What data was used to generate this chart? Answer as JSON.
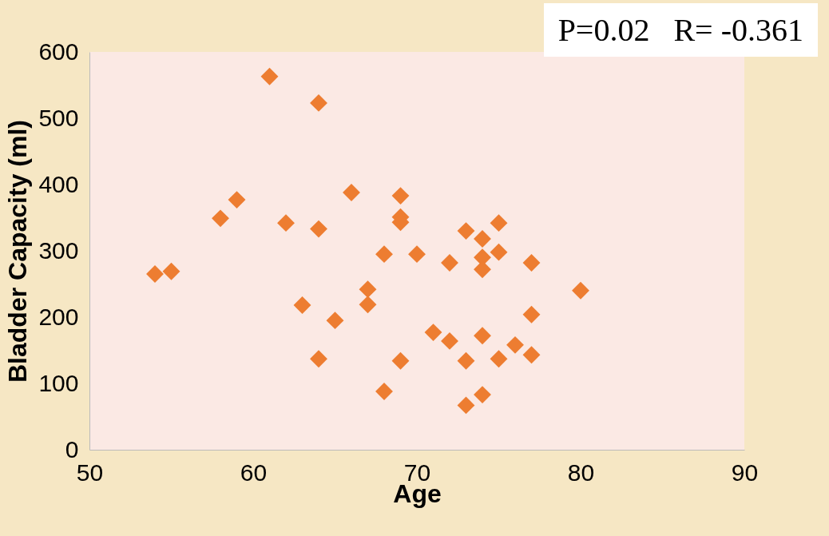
{
  "chart_data": {
    "type": "scatter",
    "xlabel": "Age",
    "ylabel": "Bladder Capacity (ml)",
    "annotations": [
      "P=0.02   R= -0.361"
    ],
    "x": [
      54,
      55,
      58,
      59,
      61,
      62,
      64,
      64,
      63,
      64,
      65,
      66,
      67,
      67,
      68,
      68,
      69,
      69,
      69,
      69,
      70,
      71,
      72,
      72,
      73,
      73,
      73,
      74,
      74,
      74,
      74,
      74,
      75,
      75,
      75,
      76,
      77,
      77,
      77,
      80
    ],
    "series": [
      {
        "color": "#ed7d31",
        "values": [
          265,
          269,
          349,
          377,
          563,
          342,
          523,
          333,
          218,
          137,
          195,
          388,
          242,
          219,
          295,
          88,
          383,
          351,
          343,
          134,
          295,
          177,
          282,
          164,
          330,
          134,
          67,
          318,
          290,
          272,
          172,
          83,
          342,
          298,
          137,
          158,
          282,
          204,
          143,
          240
        ]
      }
    ],
    "xlim": [
      50,
      90
    ],
    "xticks": [
      50,
      60,
      70,
      80,
      90
    ],
    "ylim": [
      0,
      600
    ],
    "yticks": [
      0,
      100,
      200,
      300,
      400,
      500,
      600
    ],
    "marker": "diamond",
    "grid": false,
    "legend": false
  }
}
